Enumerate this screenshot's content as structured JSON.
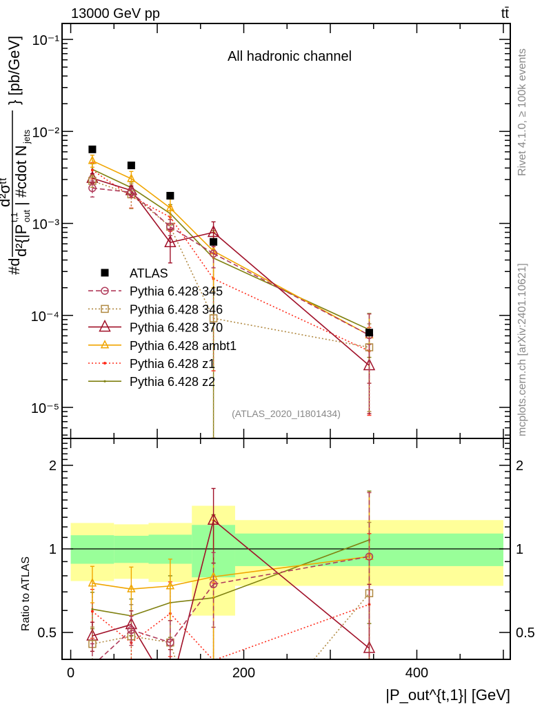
{
  "header": {
    "left": "13000 GeV pp",
    "right": "tt̄"
  },
  "side_texts": {
    "rivet": "Rivet 4.1.0, ≥ 100k events",
    "mcplots": "mcplots.cern.ch [arXiv:2401.10621]"
  },
  "ylabel_parts": {
    "prefix": "#d",
    "numerator": "d²σᵗᵗ",
    "denominator_a": "d²{|P",
    "denominator_sup": "t,1",
    "denominator_sub": "out",
    "denominator_b": "| #cdot N",
    "denominator_sub2": "jets",
    "suffix": "} [pb/GeV]"
  },
  "chart_data": [
    {
      "type": "scatter",
      "title": "All hadronic channel",
      "watermark": "(ATLAS_2020_I1801434)",
      "xlabel": "|P_out^{t,1}| [GeV]",
      "ylabel": "d²σ / d|P_out^{t,1}| dN_jets [pb/GeV]",
      "yscale": "log",
      "xlim": [
        -10,
        508
      ],
      "ylim": [
        4.6e-06,
        0.149
      ],
      "ytick_labels": [
        "10⁻⁵",
        "10⁻⁴",
        "10⁻³",
        "10⁻²",
        "10⁻¹"
      ],
      "ytick_values": [
        1e-05,
        0.0001,
        0.001,
        0.01,
        0.1
      ],
      "legend_position": "lower-left",
      "bin_edges": [
        0,
        50,
        90,
        140,
        190,
        500
      ],
      "x": [
        25,
        70,
        115,
        165,
        345
      ],
      "series": [
        {
          "name": "ATLAS",
          "color": "#000000",
          "marker": "filled-square",
          "line": "none",
          "values": [
            0.00638,
            0.00427,
            0.002,
            0.00063,
            6.5e-05
          ],
          "rel_err": [
            0.0,
            0.0,
            0.0,
            0.0,
            0.0
          ]
        },
        {
          "name": "Pythia 6.428 345",
          "color": "#b03a5a",
          "marker": "open-circle",
          "line": "dashed",
          "values": [
            0.00242,
            0.00218,
            0.00092,
            0.00047,
            6.1e-05
          ],
          "rel_err": [
            0.2,
            0.12,
            0.2,
            0.3,
            0.7
          ]
        },
        {
          "name": "Pythia 6.428 346",
          "color": "#b08840",
          "marker": "open-square",
          "line": "dotted",
          "values": [
            0.0029,
            0.00207,
            0.00092,
            9.3e-05,
            4.5e-05
          ],
          "rel_err": [
            0.15,
            0.3,
            0.2,
            0.95,
            0.8
          ]
        },
        {
          "name": "Pythia 6.428 370",
          "color": "#a01028",
          "marker": "open-triangle-large",
          "line": "solid",
          "values": [
            0.0031,
            0.00228,
            0.00062,
            0.0008,
            2.85e-05
          ],
          "rel_err": [
            0.12,
            0.12,
            0.4,
            0.3,
            0.7
          ]
        },
        {
          "name": "Pythia 6.428 ambt1",
          "color": "#f0a500",
          "marker": "open-triangle",
          "line": "solid",
          "values": [
            0.0048,
            0.00306,
            0.00147,
            0.0005,
            6.1e-05
          ],
          "rel_err": [
            0.15,
            0.2,
            0.25,
            0.6,
            0.7
          ]
        },
        {
          "name": "Pythia 6.428 z1",
          "color": "#ff2a1a",
          "marker": "dot",
          "line": "dotted",
          "values": [
            0.0038,
            0.00196,
            0.00117,
            0.00025,
            4.1e-05
          ],
          "rel_err": [
            0.2,
            0.25,
            0.3,
            0.9,
            0.8
          ]
        },
        {
          "name": "Pythia 6.428 z2",
          "color": "#7f8010",
          "marker": "small-dot",
          "line": "solid",
          "values": [
            0.00387,
            0.00245,
            0.00128,
            0.00042,
            7e-05
          ],
          "rel_err": [
            0.15,
            0.15,
            0.25,
            0.99,
            0.5
          ]
        }
      ]
    },
    {
      "type": "scatter",
      "ylabel": "Ratio to ATLAS",
      "xlabel": "|P_out^{t,1}| [GeV]",
      "yscale": "log",
      "xlim": [
        -10,
        508
      ],
      "ylim": [
        0.4,
        2.5
      ],
      "ytick_labels": [
        "0.5",
        "1",
        "2"
      ],
      "ytick_values": [
        0.5,
        1,
        2
      ],
      "xtick_labels": [
        "0",
        "200",
        "400"
      ],
      "xtick_values": [
        0,
        200,
        400
      ],
      "reference_line": 1,
      "band_inner_color": "#99ff99",
      "band_outer_color": "#ffff99",
      "band_inner": [
        [
          0.884,
          1.12
        ],
        [
          0.89,
          1.115
        ],
        [
          0.884,
          1.125
        ],
        [
          0.79,
          1.22
        ],
        [
          0.867,
          1.136
        ]
      ],
      "band_outer": [
        [
          0.766,
          1.24
        ],
        [
          0.78,
          1.226
        ],
        [
          0.76,
          1.24
        ],
        [
          0.575,
          1.43
        ],
        [
          0.736,
          1.27
        ]
      ],
      "note": "series ratios = series values / ATLAS values"
    }
  ]
}
